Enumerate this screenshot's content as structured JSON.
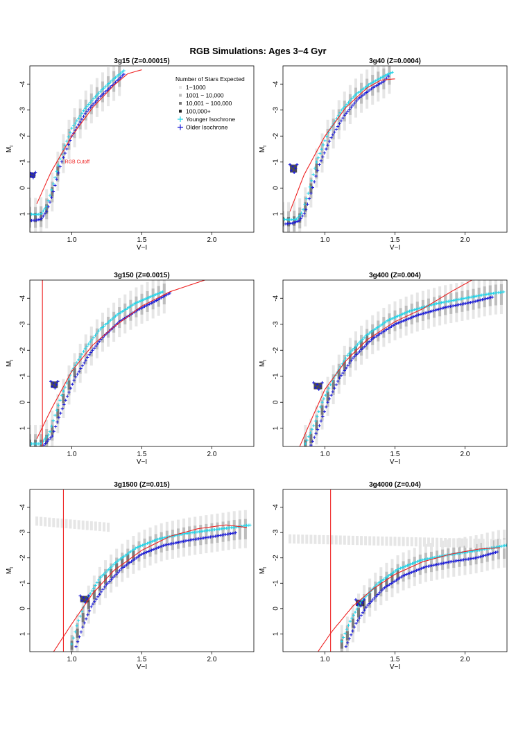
{
  "figure_title": "RGB Simulations: Ages 3−4 Gyr",
  "colors": {
    "cutoff": "#ee2222",
    "younger": "#22d4e8",
    "older": "#1a1ad8",
    "density_1": "#e6e6e6",
    "density_2": "#bdbdbd",
    "density_3": "#7a7a7a",
    "density_4": "#222222"
  },
  "legend": {
    "title": "Number of Stars Expected",
    "entries": [
      {
        "label": "1−1000",
        "symbol": "square",
        "color": "#e6e6e6"
      },
      {
        "label": "1001 − 10,000",
        "symbol": "square",
        "color": "#bdbdbd"
      },
      {
        "label": "10,001 − 100,000",
        "symbol": "square",
        "color": "#7a7a7a"
      },
      {
        "label": "100,000+",
        "symbol": "square",
        "color": "#222222"
      },
      {
        "label": "Younger Isochrone",
        "symbol": "plus",
        "color": "#22d4e8"
      },
      {
        "label": "Older Isochrone",
        "symbol": "plus",
        "color": "#1a1ad8"
      }
    ]
  },
  "chart_data": [
    {
      "type": "scatter",
      "title": "3g15 (Z=0.00015)",
      "xlabel": "V−I",
      "ylabel": "M_I",
      "xlim": [
        0.7,
        2.3
      ],
      "ylim": [
        1.7,
        -4.7
      ],
      "xticks": [
        1.0,
        1.5,
        2.0
      ],
      "xtick_labels": [
        "1.0",
        "1.5",
        "2.0"
      ],
      "yticks": [
        -4,
        -3,
        -2,
        -1,
        0,
        1
      ],
      "ytick_labels": [
        "-4",
        "-3",
        "-2",
        "-1",
        "0",
        "1"
      ],
      "annotation": "RGB Cutoff",
      "cutoff_curve": {
        "x": [
          0.75,
          0.85,
          1.0,
          1.15,
          1.3,
          1.4,
          1.5
        ],
        "y": [
          0.6,
          -0.6,
          -2.0,
          -3.1,
          -3.95,
          -4.4,
          -4.55
        ]
      },
      "vertical_cutoff": null,
      "younger": {
        "x": [
          0.7,
          0.74,
          0.78,
          0.82,
          0.86,
          0.92,
          1.0,
          1.1,
          1.2,
          1.3,
          1.38
        ],
        "y": [
          1.0,
          1.02,
          1.0,
          0.7,
          0.0,
          -1.2,
          -2.3,
          -3.1,
          -3.7,
          -4.2,
          -4.55
        ]
      },
      "older": {
        "x": [
          0.7,
          0.74,
          0.78,
          0.82,
          0.86,
          0.92,
          1.0,
          1.1,
          1.2,
          1.3,
          1.38
        ],
        "y": [
          1.25,
          1.24,
          1.2,
          0.9,
          0.3,
          -0.9,
          -2.0,
          -2.9,
          -3.5,
          -4.0,
          -4.42
        ]
      },
      "horizontal_branch": [],
      "clump": {
        "x": [
          0.7,
          0.74
        ],
        "y": [
          -0.6,
          -0.4
        ]
      }
    },
    {
      "type": "scatter",
      "title": "3g40 (Z=0.0004)",
      "xlabel": "V−I",
      "ylabel": "M_I",
      "xlim": [
        0.7,
        2.3
      ],
      "ylim": [
        1.7,
        -4.7
      ],
      "xticks": [
        1.0,
        1.5,
        2.0
      ],
      "xtick_labels": [
        "1.0",
        "1.5",
        "2.0"
      ],
      "yticks": [
        -4,
        -3,
        -2,
        -1,
        0,
        1
      ],
      "ytick_labels": [
        "-4",
        "-3",
        "-2",
        "-1",
        "0",
        "1"
      ],
      "annotation": "",
      "cutoff_curve": {
        "x": [
          0.75,
          0.85,
          1.0,
          1.15,
          1.3,
          1.4,
          1.5
        ],
        "y": [
          0.9,
          -0.5,
          -2.0,
          -3.1,
          -3.85,
          -4.15,
          -4.2
        ]
      },
      "vertical_cutoff": null,
      "younger": {
        "x": [
          0.7,
          0.75,
          0.8,
          0.84,
          0.88,
          0.94,
          1.02,
          1.12,
          1.22,
          1.32,
          1.42,
          1.48
        ],
        "y": [
          1.2,
          1.22,
          1.2,
          0.9,
          0.2,
          -1.0,
          -2.1,
          -3.0,
          -3.6,
          -4.0,
          -4.3,
          -4.45
        ]
      },
      "older": {
        "x": [
          0.72,
          0.77,
          0.82,
          0.86,
          0.9,
          0.96,
          1.04,
          1.14,
          1.24,
          1.34,
          1.42,
          1.46
        ],
        "y": [
          1.38,
          1.35,
          1.25,
          0.9,
          0.2,
          -0.9,
          -1.9,
          -2.8,
          -3.45,
          -3.85,
          -4.1,
          -4.35
        ]
      },
      "horizontal_branch": [],
      "clump": {
        "x": [
          0.75,
          0.8
        ],
        "y": [
          -0.9,
          -0.6
        ]
      }
    },
    {
      "type": "scatter",
      "title": "3g150 (Z=0.0015)",
      "xlabel": "V−I",
      "ylabel": "M_I",
      "xlim": [
        0.7,
        2.3
      ],
      "ylim": [
        1.7,
        -4.7
      ],
      "xticks": [
        1.0,
        1.5,
        2.0
      ],
      "xtick_labels": [
        "1.0",
        "1.5",
        "2.0"
      ],
      "yticks": [
        -4,
        -3,
        -2,
        -1,
        0,
        1
      ],
      "ytick_labels": [
        "-4",
        "-3",
        "-2",
        "-1",
        "0",
        "1"
      ],
      "annotation": "",
      "cutoff_curve": {
        "x": [
          0.75,
          0.85,
          1.0,
          1.15,
          1.3,
          1.5,
          1.7,
          1.95
        ],
        "y": [
          1.4,
          0.3,
          -1.2,
          -2.2,
          -2.9,
          -3.7,
          -4.25,
          -4.7
        ]
      },
      "vertical_cutoff": 0.79,
      "younger": {
        "x": [
          0.7,
          0.78,
          0.84,
          0.88,
          0.93,
          1.0,
          1.1,
          1.2,
          1.32,
          1.45,
          1.58,
          1.65
        ],
        "y": [
          1.6,
          1.6,
          1.2,
          0.5,
          -0.3,
          -1.2,
          -2.1,
          -2.8,
          -3.35,
          -3.8,
          -4.1,
          -4.25
        ]
      },
      "older": {
        "x": [
          0.8,
          0.86,
          0.9,
          0.95,
          1.02,
          1.12,
          1.22,
          1.34,
          1.47,
          1.6,
          1.7
        ],
        "y": [
          1.65,
          1.3,
          0.7,
          0.0,
          -0.9,
          -1.8,
          -2.5,
          -3.1,
          -3.55,
          -3.9,
          -4.2
        ]
      },
      "horizontal_branch": [],
      "clump": {
        "x": [
          0.85,
          0.9
        ],
        "y": [
          -0.8,
          -0.55
        ]
      }
    },
    {
      "type": "scatter",
      "title": "3g400 (Z=0.004)",
      "xlabel": "V−I",
      "ylabel": "M_I",
      "xlim": [
        0.7,
        2.3
      ],
      "ylim": [
        1.7,
        -4.7
      ],
      "xticks": [
        1.0,
        1.5,
        2.0
      ],
      "xtick_labels": [
        "1.0",
        "1.5",
        "2.0"
      ],
      "yticks": [
        -4,
        -3,
        -2,
        -1,
        0,
        1
      ],
      "ytick_labels": [
        "-4",
        "-3",
        "-2",
        "-1",
        "0",
        "1"
      ],
      "annotation": "",
      "cutoff_curve": {
        "x": [
          0.82,
          0.9,
          1.0,
          1.15,
          1.3,
          1.5,
          1.7,
          1.9,
          2.05
        ],
        "y": [
          1.7,
          0.7,
          -0.5,
          -1.6,
          -2.4,
          -3.1,
          -3.6,
          -4.25,
          -4.7
        ]
      },
      "vertical_cutoff": null,
      "younger": {
        "x": [
          0.86,
          0.92,
          0.98,
          1.06,
          1.16,
          1.3,
          1.45,
          1.6,
          1.8,
          2.0,
          2.15,
          2.28
        ],
        "y": [
          1.6,
          0.9,
          0.0,
          -0.9,
          -1.8,
          -2.6,
          -3.15,
          -3.5,
          -3.8,
          -4.0,
          -4.15,
          -4.25
        ]
      },
      "older": {
        "x": [
          0.9,
          0.96,
          1.02,
          1.1,
          1.2,
          1.34,
          1.5,
          1.66,
          1.86,
          2.05,
          2.2
        ],
        "y": [
          1.65,
          0.9,
          0.0,
          -0.9,
          -1.7,
          -2.45,
          -3.0,
          -3.35,
          -3.65,
          -3.85,
          -4.05
        ]
      },
      "horizontal_branch": [],
      "clump": {
        "x": [
          0.92,
          0.98
        ],
        "y": [
          -0.75,
          -0.5
        ]
      }
    },
    {
      "type": "scatter",
      "title": "3g1500 (Z=0.015)",
      "xlabel": "V−I",
      "ylabel": "M_I",
      "xlim": [
        0.7,
        2.3
      ],
      "ylim": [
        1.7,
        -4.7
      ],
      "xticks": [
        1.0,
        1.5,
        2.0
      ],
      "xtick_labels": [
        "1.0",
        "1.5",
        "2.0"
      ],
      "yticks": [
        -4,
        -3,
        -2,
        -1,
        0,
        1
      ],
      "ytick_labels": [
        "-4",
        "-3",
        "-2",
        "-1",
        "0",
        "1"
      ],
      "annotation": "",
      "cutoff_curve": {
        "x": [
          0.87,
          1.0,
          1.15,
          1.3,
          1.5,
          1.7,
          1.9,
          2.1,
          2.25
        ],
        "y": [
          1.7,
          0.6,
          -0.6,
          -1.5,
          -2.3,
          -2.85,
          -3.15,
          -3.3,
          -3.2
        ]
      },
      "vertical_cutoff": 0.94,
      "younger": {
        "x": [
          1.0,
          1.04,
          1.1,
          1.2,
          1.32,
          1.46,
          1.62,
          1.8,
          2.0,
          2.15,
          2.28
        ],
        "y": [
          1.4,
          0.6,
          -0.3,
          -1.2,
          -1.85,
          -2.4,
          -2.75,
          -2.95,
          -3.1,
          -3.2,
          -3.3
        ]
      },
      "older": {
        "x": [
          1.03,
          1.08,
          1.14,
          1.24,
          1.36,
          1.5,
          1.66,
          1.84,
          2.02,
          2.18
        ],
        "y": [
          1.5,
          0.7,
          -0.1,
          -0.9,
          -1.6,
          -2.15,
          -2.5,
          -2.7,
          -2.85,
          -3.0
        ]
      },
      "horizontal_branch": [
        {
          "x": 0.75,
          "y": -3.45
        },
        {
          "x": 1.28,
          "y": -3.2
        }
      ],
      "clump": {
        "x": [
          1.06,
          1.12
        ],
        "y": [
          -0.5,
          -0.25
        ]
      }
    },
    {
      "type": "scatter",
      "title": "3g4000 (Z=0.04)",
      "xlabel": "V−I",
      "ylabel": "M_I",
      "xlim": [
        0.7,
        2.3
      ],
      "ylim": [
        1.7,
        -4.7
      ],
      "xticks": [
        1.0,
        1.5,
        2.0
      ],
      "xtick_labels": [
        "1.0",
        "1.5",
        "2.0"
      ],
      "yticks": [
        -4,
        -3,
        -2,
        -1,
        0,
        1
      ],
      "ytick_labels": [
        "-4",
        "-3",
        "-2",
        "-1",
        "0",
        "1"
      ],
      "annotation": "",
      "cutoff_curve": {
        "x": [
          0.95,
          1.05,
          1.2,
          1.35,
          1.5,
          1.7,
          1.9,
          2.1,
          2.25
        ],
        "y": [
          1.7,
          0.9,
          -0.1,
          -0.8,
          -1.35,
          -1.85,
          -2.15,
          -2.35,
          -2.4
        ]
      },
      "vertical_cutoff": 1.04,
      "younger": {
        "x": [
          1.12,
          1.18,
          1.26,
          1.38,
          1.52,
          1.68,
          1.86,
          2.04,
          2.2,
          2.3
        ],
        "y": [
          1.3,
          0.5,
          -0.3,
          -1.0,
          -1.55,
          -1.9,
          -2.1,
          -2.25,
          -2.4,
          -2.5
        ]
      },
      "older": {
        "x": [
          1.15,
          1.22,
          1.3,
          1.42,
          1.56,
          1.72,
          1.9,
          2.08,
          2.24
        ],
        "y": [
          1.5,
          0.6,
          -0.1,
          -0.8,
          -1.3,
          -1.65,
          -1.85,
          -2.0,
          -2.25
        ]
      },
      "horizontal_branch": [
        {
          "x": 0.75,
          "y": -2.75
        },
        {
          "x": 2.28,
          "y": -2.55
        }
      ],
      "clump": {
        "x": [
          1.22,
          1.28
        ],
        "y": [
          -0.35,
          -0.1
        ]
      }
    }
  ]
}
